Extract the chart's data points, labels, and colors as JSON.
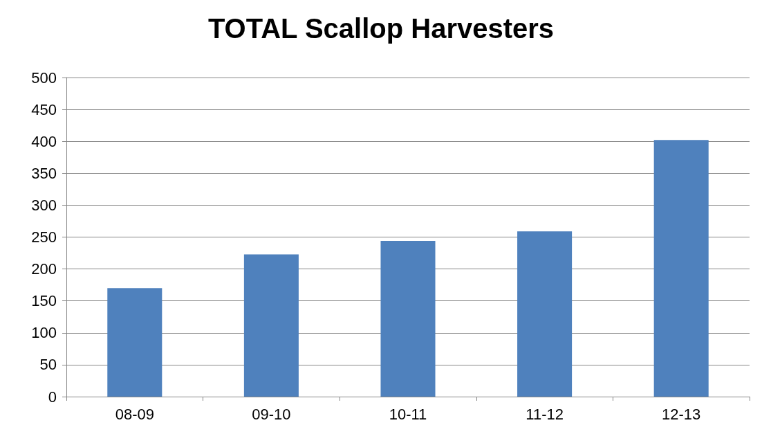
{
  "chart_data": {
    "type": "bar",
    "title": "TOTAL Scallop Harvesters",
    "categories": [
      "08-09",
      "09-10",
      "10-11",
      "11-12",
      "12-13"
    ],
    "values": [
      170,
      223,
      244,
      259,
      402
    ],
    "color": "#4f81bd",
    "ylim": [
      0,
      500
    ],
    "yticks": [
      0,
      50,
      100,
      150,
      200,
      250,
      300,
      350,
      400,
      450,
      500
    ],
    "grid": "y"
  }
}
